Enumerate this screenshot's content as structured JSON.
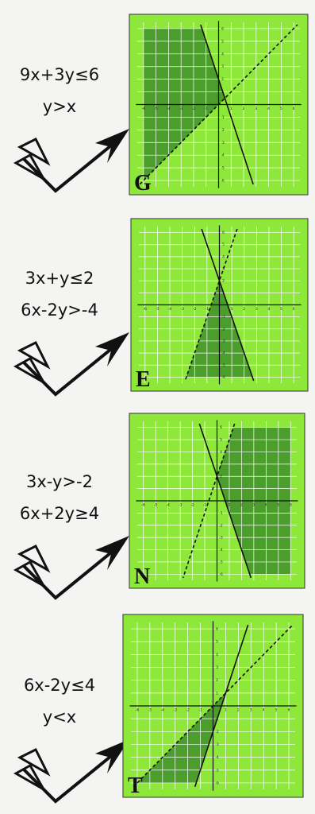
{
  "panels": [
    {
      "inequalities": [
        "9x+3y≤6",
        "y>x"
      ],
      "letter": "G"
    },
    {
      "inequalities": [
        "3x+y≤2",
        "6x-2y>-4"
      ],
      "letter": "E"
    },
    {
      "inequalities": [
        "3x-y>-2",
        "6x+2y≥4"
      ],
      "letter": "N"
    },
    {
      "inequalities": [
        "6x-2y≤4",
        "y<x"
      ],
      "letter": "T"
    }
  ],
  "tick_labels": [
    -6,
    -5,
    -4,
    -3,
    -2,
    -1,
    1,
    2,
    3,
    4,
    5,
    6
  ]
}
